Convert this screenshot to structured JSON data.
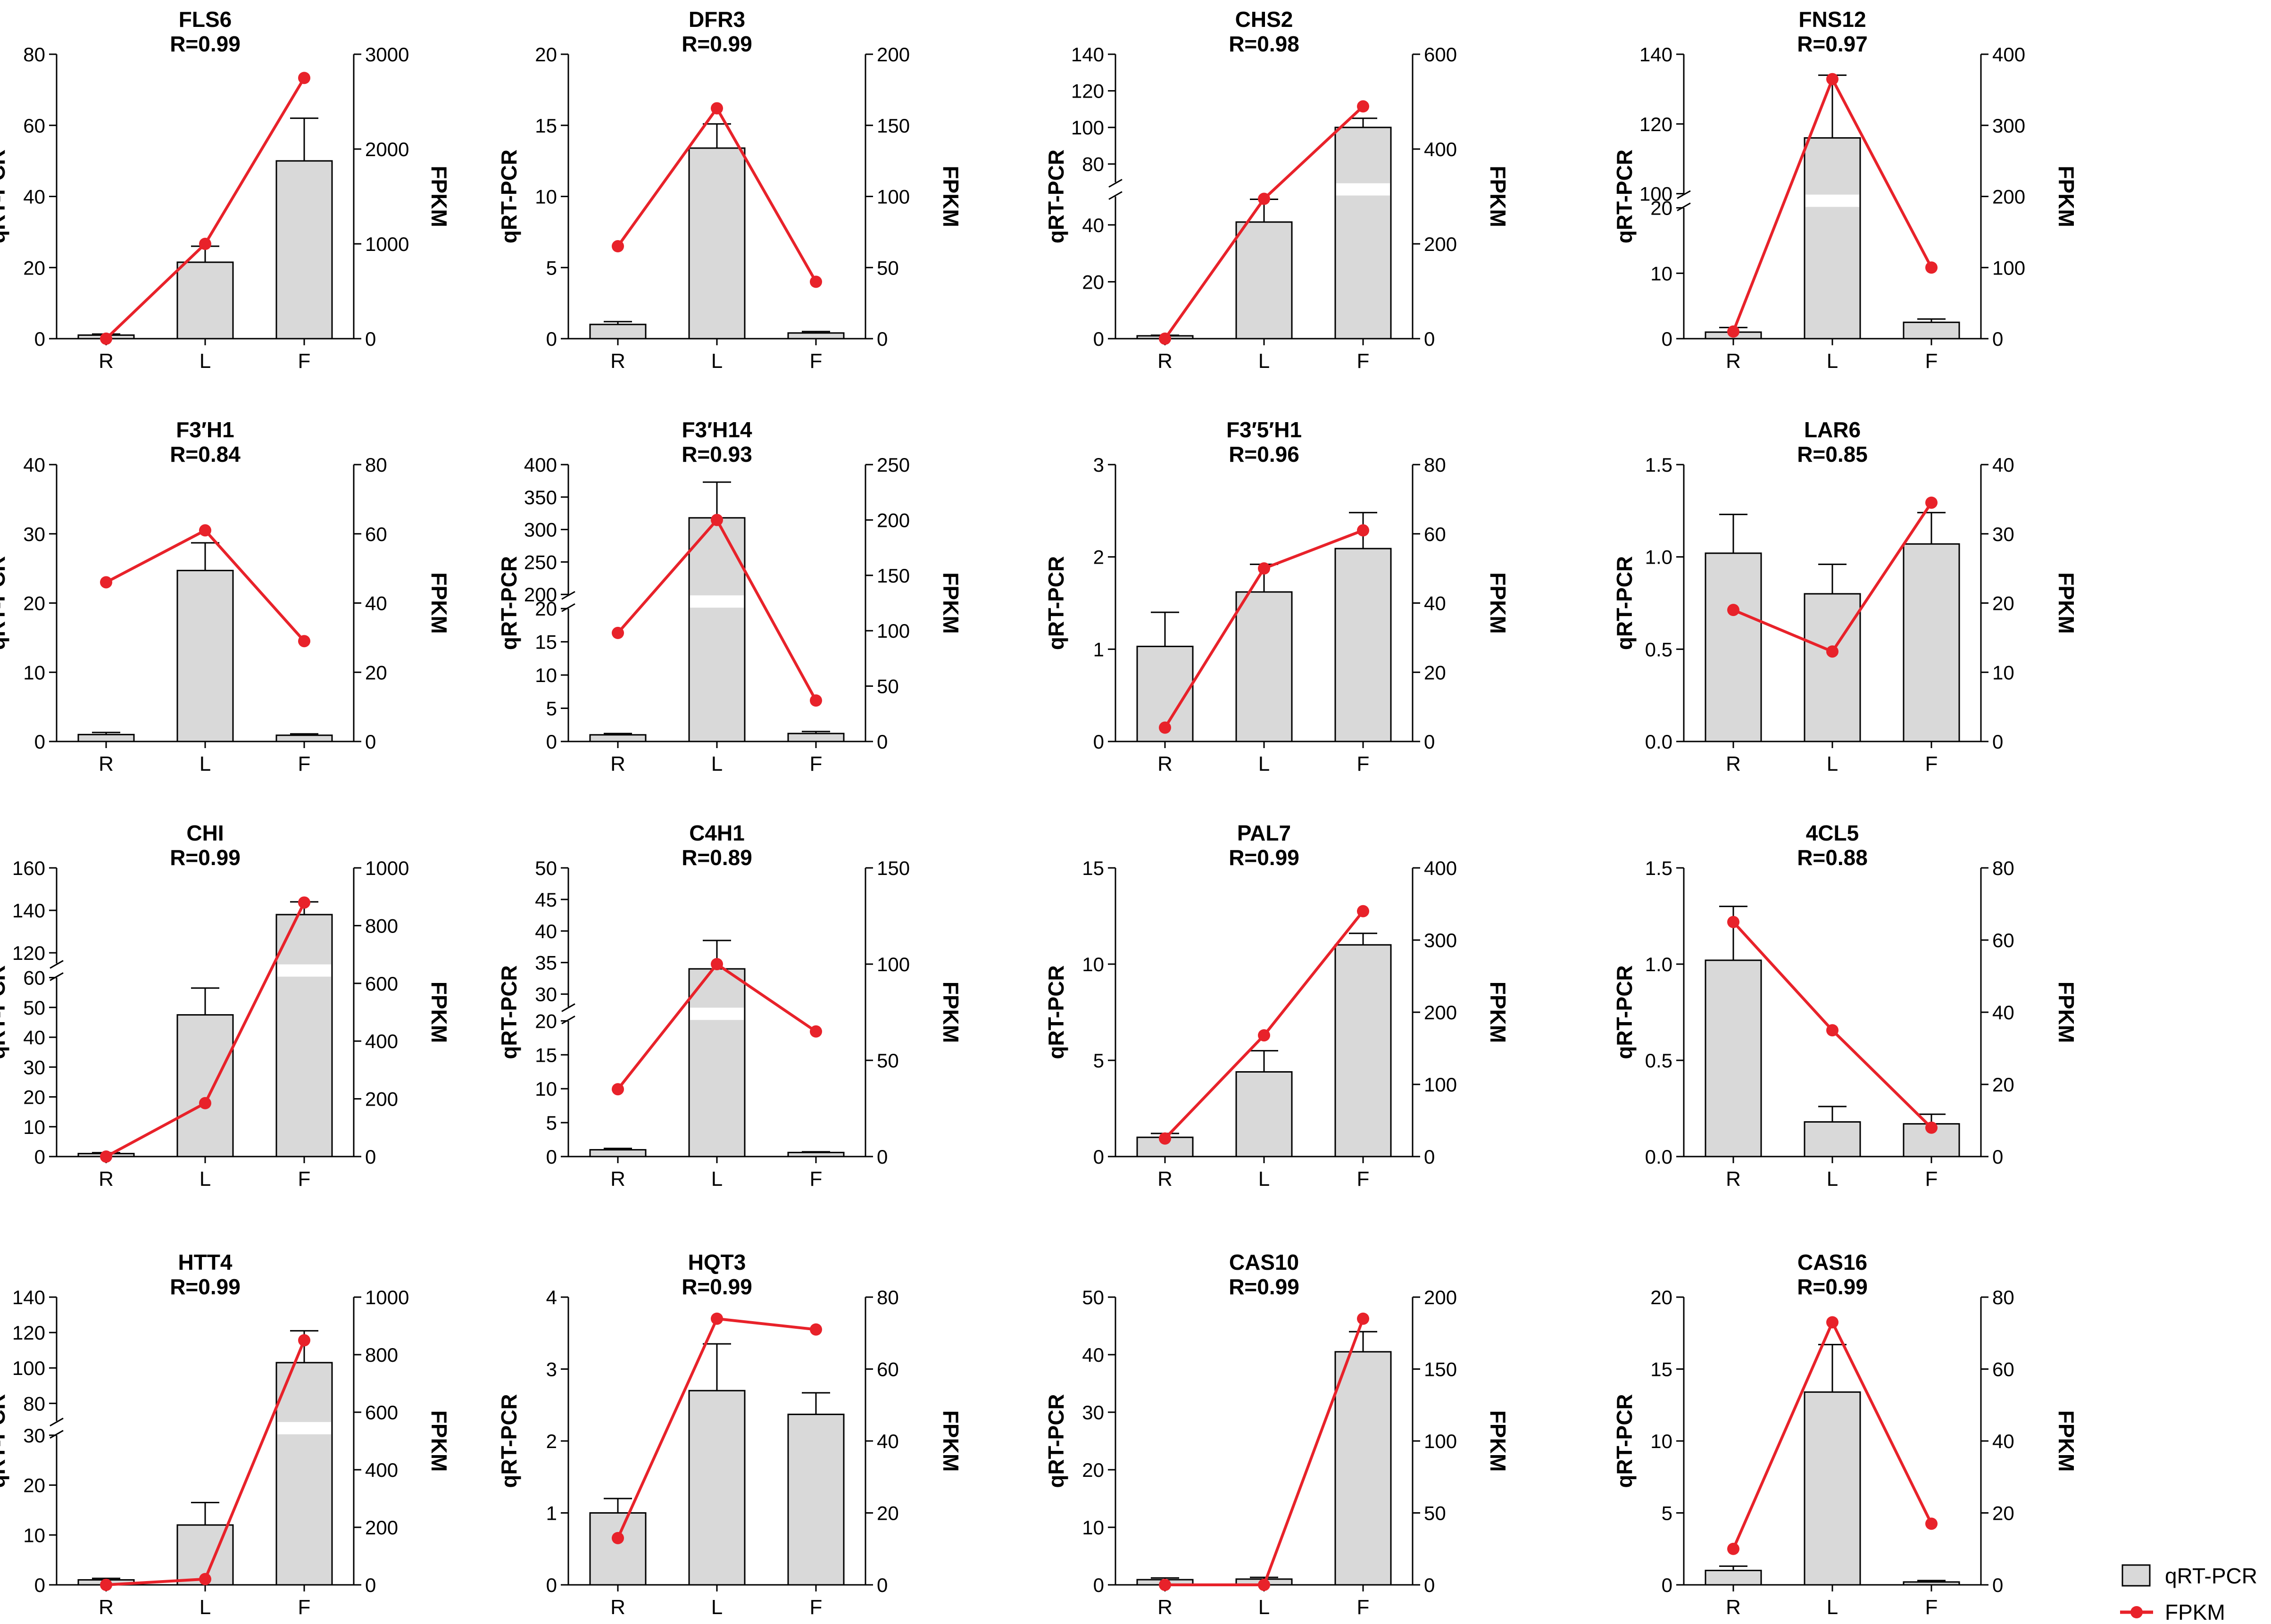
{
  "colors": {
    "bar_fill": "#d9d9d9",
    "bar_stroke": "#000000",
    "line": "#e8222a",
    "axis": "#000000"
  },
  "legend": {
    "bar_label": "qRT-PCR",
    "line_label": "FPKM"
  },
  "axis_labels": {
    "left": "qRT-PCR",
    "right": "FPKM"
  },
  "chart_data": [
    {
      "type": "bar",
      "gene": "FLS6",
      "r_label": "R=0.99",
      "categories": [
        "R",
        "L",
        "F"
      ],
      "qrtpcr": [
        1,
        21.5,
        50
      ],
      "qrtpcr_err": [
        0.3,
        4.5,
        12
      ],
      "fpkm": [
        0,
        1000,
        2750
      ],
      "left_ticks": [
        0,
        20,
        40,
        60,
        80
      ],
      "right_ticks": [
        0,
        1000,
        2000,
        3000
      ],
      "break": null
    },
    {
      "type": "bar",
      "gene": "DFR3",
      "r_label": "R=0.99",
      "categories": [
        "R",
        "L",
        "F"
      ],
      "qrtpcr": [
        1,
        13.4,
        0.4
      ],
      "qrtpcr_err": [
        0.2,
        1.7,
        0.1
      ],
      "fpkm": [
        65,
        162,
        40
      ],
      "left_ticks": [
        0,
        5,
        10,
        15,
        20
      ],
      "right_ticks": [
        0,
        50,
        100,
        150,
        200
      ],
      "break": null
    },
    {
      "type": "bar",
      "gene": "CHS2",
      "r_label": "R=0.98",
      "categories": [
        "R",
        "L",
        "F"
      ],
      "qrtpcr": [
        1,
        41,
        100
      ],
      "qrtpcr_err": [
        0.2,
        8,
        5
      ],
      "fpkm": [
        0,
        295,
        490
      ],
      "left_ticks_low": [
        0,
        20,
        40
      ],
      "left_ticks_high": [
        80,
        100,
        120,
        140
      ],
      "right_ticks": [
        0,
        200,
        400,
        600
      ],
      "break": {
        "low": [
          0,
          50
        ],
        "high": [
          70,
          140
        ],
        "low_frac": 0.5
      }
    },
    {
      "type": "bar",
      "gene": "FNS12",
      "r_label": "R=0.97",
      "categories": [
        "R",
        "L",
        "F"
      ],
      "qrtpcr": [
        1,
        116,
        2.5
      ],
      "qrtpcr_err": [
        0.7,
        18,
        0.5
      ],
      "fpkm": [
        10,
        365,
        100
      ],
      "left_ticks_low": [
        0,
        10,
        20
      ],
      "left_ticks_high": [
        100,
        120,
        140
      ],
      "right_ticks": [
        0,
        100,
        200,
        300,
        400
      ],
      "break": {
        "low": [
          0,
          20
        ],
        "high": [
          100,
          140
        ],
        "low_frac": 0.46
      }
    },
    {
      "type": "bar",
      "gene": "F3′H1",
      "r_label": "R=0.84",
      "categories": [
        "R",
        "L",
        "F"
      ],
      "qrtpcr": [
        1,
        24.7,
        0.9
      ],
      "qrtpcr_err": [
        0.3,
        4,
        0.2
      ],
      "fpkm": [
        46,
        61,
        29
      ],
      "left_ticks": [
        0,
        10,
        20,
        30,
        40
      ],
      "right_ticks": [
        0,
        20,
        40,
        60,
        80
      ],
      "break": null
    },
    {
      "type": "bar",
      "gene": "F3′H14",
      "r_label": "R=0.93",
      "categories": [
        "R",
        "L",
        "F"
      ],
      "qrtpcr": [
        1,
        318,
        1.2
      ],
      "qrtpcr_err": [
        0.2,
        55,
        0.3
      ],
      "fpkm": [
        98,
        200,
        37
      ],
      "left_ticks_low": [
        0,
        5,
        10,
        15,
        20
      ],
      "left_ticks_high": [
        200,
        250,
        300,
        350,
        400
      ],
      "right_ticks": [
        0,
        50,
        100,
        150,
        200,
        250
      ],
      "break": {
        "low": [
          0,
          20
        ],
        "high": [
          200,
          400
        ],
        "low_frac": 0.48
      }
    },
    {
      "type": "bar",
      "gene": "F3′5′H1",
      "r_label": "R=0.96",
      "categories": [
        "R",
        "L",
        "F"
      ],
      "qrtpcr": [
        1.03,
        1.62,
        2.09
      ],
      "qrtpcr_err": [
        0.37,
        0.3,
        0.39
      ],
      "fpkm": [
        4,
        50,
        61
      ],
      "left_ticks": [
        0,
        1,
        2,
        3
      ],
      "right_ticks": [
        0,
        20,
        40,
        60,
        80
      ],
      "break": null
    },
    {
      "type": "bar",
      "gene": "LAR6",
      "r_label": "R=0.85",
      "categories": [
        "R",
        "L",
        "F"
      ],
      "qrtpcr": [
        1.02,
        0.8,
        1.07
      ],
      "qrtpcr_err": [
        0.21,
        0.16,
        0.17
      ],
      "fpkm": [
        19,
        13,
        34.5
      ],
      "left_ticks": [
        0.0,
        0.5,
        1.0,
        1.5
      ],
      "right_ticks": [
        0,
        10,
        20,
        30,
        40
      ],
      "break": null
    },
    {
      "type": "bar",
      "gene": "CHI",
      "r_label": "R=0.99",
      "categories": [
        "R",
        "L",
        "F"
      ],
      "qrtpcr": [
        1,
        47.5,
        138
      ],
      "qrtpcr_err": [
        0.3,
        9,
        6
      ],
      "fpkm": [
        0,
        185,
        880
      ],
      "left_ticks_low": [
        0,
        10,
        20,
        30,
        40,
        50,
        60
      ],
      "left_ticks_high": [
        120,
        140,
        160
      ],
      "right_ticks": [
        0,
        200,
        400,
        600,
        800,
        1000
      ],
      "break": {
        "low": [
          0,
          60
        ],
        "high": [
          115,
          160
        ],
        "low_frac": 0.62
      }
    },
    {
      "type": "bar",
      "gene": "C4H1",
      "r_label": "R=0.89",
      "categories": [
        "R",
        "L",
        "F"
      ],
      "qrtpcr": [
        1,
        34,
        0.6
      ],
      "qrtpcr_err": [
        0.2,
        4.5,
        0.1
      ],
      "fpkm": [
        35,
        100,
        65
      ],
      "left_ticks_low": [
        0,
        5,
        10,
        15,
        20
      ],
      "left_ticks_high": [
        30,
        35,
        40,
        45,
        50
      ],
      "right_ticks": [
        0,
        50,
        100,
        150
      ],
      "break": {
        "low": [
          0,
          20
        ],
        "high": [
          28,
          50
        ],
        "low_frac": 0.47
      }
    },
    {
      "type": "bar",
      "gene": "PAL7",
      "r_label": "R=0.99",
      "categories": [
        "R",
        "L",
        "F"
      ],
      "qrtpcr": [
        1,
        4.4,
        11.0
      ],
      "qrtpcr_err": [
        0.2,
        1.1,
        0.6
      ],
      "fpkm": [
        25,
        168,
        340
      ],
      "left_ticks": [
        0,
        5,
        10,
        15
      ],
      "right_ticks": [
        0,
        100,
        200,
        300,
        400
      ],
      "break": null
    },
    {
      "type": "bar",
      "gene": "4CL5",
      "r_label": "R=0.88",
      "categories": [
        "R",
        "L",
        "F"
      ],
      "qrtpcr": [
        1.02,
        0.18,
        0.17
      ],
      "qrtpcr_err": [
        0.28,
        0.08,
        0.05
      ],
      "fpkm": [
        65,
        35,
        8
      ],
      "left_ticks": [
        0.0,
        0.5,
        1.0,
        1.5
      ],
      "right_ticks": [
        0,
        20,
        40,
        60,
        80
      ],
      "break": null
    },
    {
      "type": "bar",
      "gene": "HTT4",
      "r_label": "R=0.99",
      "categories": [
        "R",
        "L",
        "F"
      ],
      "qrtpcr": [
        1,
        12,
        103
      ],
      "qrtpcr_err": [
        0.3,
        4.5,
        18
      ],
      "fpkm": [
        0,
        20,
        850
      ],
      "left_ticks_low": [
        0,
        10,
        20,
        30
      ],
      "left_ticks_high": [
        80,
        100,
        120,
        140
      ],
      "right_ticks": [
        0,
        200,
        400,
        600,
        800,
        1000
      ],
      "break": {
        "low": [
          0,
          30
        ],
        "high": [
          70,
          140
        ],
        "low_frac": 0.52
      }
    },
    {
      "type": "bar",
      "gene": "HQT3",
      "r_label": "R=0.99",
      "categories": [
        "R",
        "L",
        "F"
      ],
      "qrtpcr": [
        1,
        2.7,
        2.37
      ],
      "qrtpcr_err": [
        0.2,
        0.65,
        0.3
      ],
      "fpkm": [
        13,
        74,
        71
      ],
      "left_ticks": [
        0,
        1,
        2,
        3,
        4
      ],
      "right_ticks": [
        0,
        20,
        40,
        60,
        80
      ],
      "break": null
    },
    {
      "type": "bar",
      "gene": "CAS10",
      "r_label": "R=0.99",
      "categories": [
        "R",
        "L",
        "F"
      ],
      "qrtpcr": [
        0.9,
        1.0,
        40.5
      ],
      "qrtpcr_err": [
        0.3,
        0.3,
        3.5
      ],
      "fpkm": [
        0,
        0,
        185
      ],
      "left_ticks": [
        0,
        10,
        20,
        30,
        40,
        50
      ],
      "right_ticks": [
        0,
        50,
        100,
        150,
        200
      ],
      "break": null
    },
    {
      "type": "bar",
      "gene": "CAS16",
      "r_label": "R=0.99",
      "categories": [
        "R",
        "L",
        "F"
      ],
      "qrtpcr": [
        1,
        13.4,
        0.2
      ],
      "qrtpcr_err": [
        0.3,
        3.3,
        0.1
      ],
      "fpkm": [
        10,
        73,
        17
      ],
      "left_ticks": [
        0,
        5,
        10,
        15,
        20
      ],
      "right_ticks": [
        0,
        20,
        40,
        60,
        80
      ],
      "break": null
    }
  ]
}
